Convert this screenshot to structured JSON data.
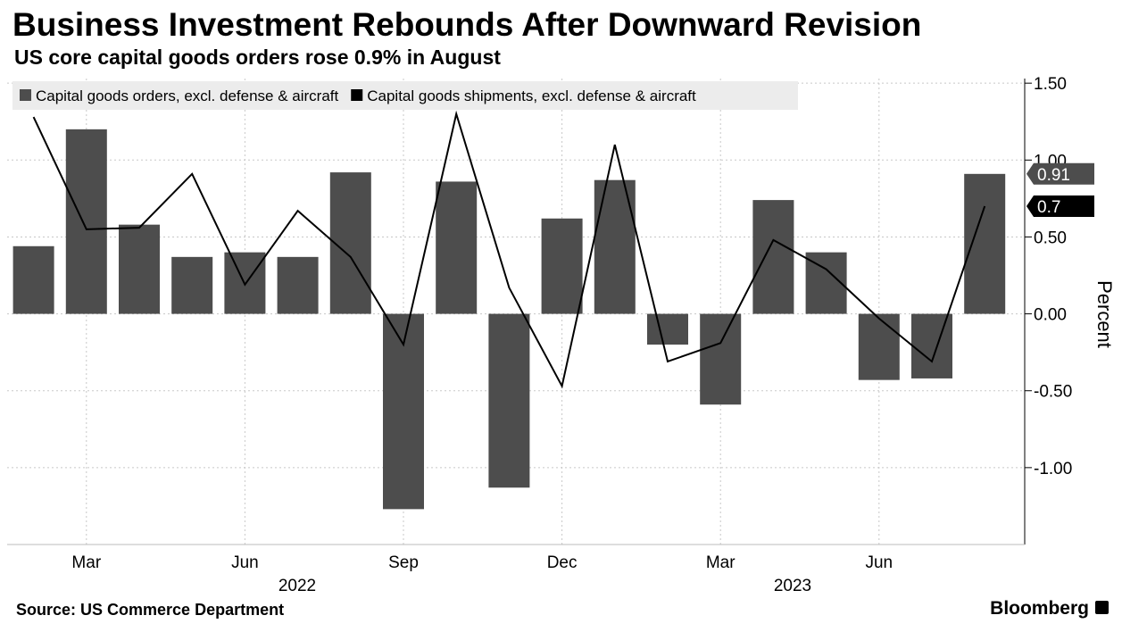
{
  "chart_data": {
    "type": "bar_line",
    "title": "Business Investment Rebounds After Downward Revision",
    "subtitle": "US core capital goods orders rose 0.9% in August",
    "y_label": "Percent",
    "source": "Source: US Commerce Department",
    "brand": "Bloomberg",
    "categories": [
      null,
      "Mar",
      null,
      null,
      "Jun",
      null,
      null,
      "Sep",
      null,
      null,
      "Dec",
      null,
      null,
      "Mar",
      null,
      null,
      "Jun",
      null,
      null
    ],
    "year_labels": [
      "2022",
      "2023"
    ],
    "series": [
      {
        "name": "Capital goods orders, excl. defense & aircraft",
        "kind": "bar",
        "color": "#4d4d4d",
        "values": [
          0.44,
          1.2,
          0.58,
          0.37,
          0.4,
          0.37,
          0.92,
          -1.27,
          0.86,
          -1.13,
          0.62,
          0.87,
          -0.2,
          -0.59,
          0.74,
          0.4,
          -0.43,
          -0.42,
          0.91
        ]
      },
      {
        "name": "Capital goods shipments, excl. defense & aircraft",
        "kind": "line",
        "color": "#000000",
        "values": [
          1.28,
          0.55,
          0.56,
          0.91,
          0.19,
          0.67,
          0.37,
          -0.2,
          1.3,
          0.17,
          -0.47,
          1.1,
          -0.31,
          -0.19,
          0.48,
          0.29,
          -0.03,
          -0.31,
          0.7
        ]
      }
    ],
    "ylim": [
      -1.5,
      1.53
    ],
    "yticks": [
      {
        "value": -1,
        "label": "-1.00"
      },
      {
        "value": -0.5,
        "label": "-0.50"
      },
      {
        "value": 0,
        "label": "0.00"
      },
      {
        "value": 0.5,
        "label": "0.50"
      },
      {
        "value": 1,
        "label": "1.00"
      },
      {
        "value": 1.5,
        "label": "1.50"
      }
    ],
    "grid": true
  }
}
